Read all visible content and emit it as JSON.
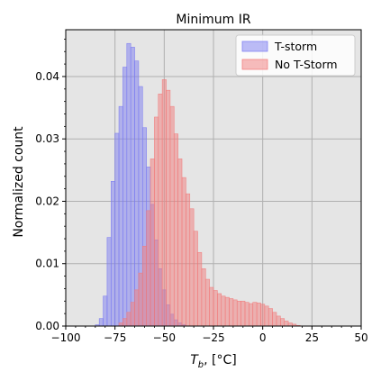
{
  "chart_data": {
    "type": "bar",
    "title": "Minimum IR",
    "xlabel_base": "T",
    "xlabel_sub": "b",
    "xlabel_unit": ", [°C]",
    "ylabel": "Normalized count",
    "xlim": [
      -100,
      50
    ],
    "ylim": [
      0,
      0.0475
    ],
    "xticks": [
      -100,
      -75,
      -50,
      -25,
      0,
      25,
      50
    ],
    "xtick_labels": [
      "−100",
      "−75",
      "−50",
      "−25",
      "0",
      "25",
      "50"
    ],
    "yticks": [
      0,
      0.01,
      0.02,
      0.03,
      0.04
    ],
    "ytick_labels": [
      "0.00",
      "0.01",
      "0.02",
      "0.03",
      "0.04"
    ],
    "grid": true,
    "legend_position": "top-right",
    "bin_width": 2,
    "series": [
      {
        "name": "T-storm",
        "color": "#7b7bf2",
        "alpha": 0.5,
        "bin_starts": [
          -85,
          -83,
          -81,
          -79,
          -77,
          -75,
          -73,
          -71,
          -69,
          -67,
          -65,
          -63,
          -61,
          -59,
          -57,
          -55,
          -53,
          -51,
          -49,
          -47,
          -45,
          -43,
          -41
        ],
        "values": [
          0.0002,
          0.0012,
          0.0048,
          0.0142,
          0.0232,
          0.0309,
          0.0352,
          0.0415,
          0.0453,
          0.0447,
          0.0425,
          0.0384,
          0.0318,
          0.0255,
          0.0195,
          0.0138,
          0.0092,
          0.0058,
          0.0034,
          0.0019,
          0.001,
          0.0005,
          0.0002
        ]
      },
      {
        "name": "No T-Storm",
        "color": "#f27b7b",
        "alpha": 0.5,
        "bin_starts": [
          -73,
          -71,
          -69,
          -67,
          -65,
          -63,
          -61,
          -59,
          -57,
          -55,
          -53,
          -51,
          -49,
          -47,
          -45,
          -43,
          -41,
          -39,
          -37,
          -35,
          -33,
          -31,
          -29,
          -27,
          -25,
          -23,
          -21,
          -19,
          -17,
          -15,
          -13,
          -11,
          -9,
          -7,
          -5,
          -3,
          -1,
          1,
          3,
          5,
          7,
          9,
          11,
          13,
          15,
          17
        ],
        "values": [
          0.0005,
          0.0012,
          0.0022,
          0.0038,
          0.0058,
          0.0085,
          0.0128,
          0.0185,
          0.0268,
          0.0335,
          0.0372,
          0.0395,
          0.0378,
          0.0352,
          0.0308,
          0.0268,
          0.0238,
          0.0212,
          0.0188,
          0.0152,
          0.0118,
          0.0092,
          0.0075,
          0.0062,
          0.0057,
          0.0052,
          0.0048,
          0.0046,
          0.0044,
          0.0042,
          0.004,
          0.004,
          0.0038,
          0.0036,
          0.0038,
          0.0037,
          0.0035,
          0.0032,
          0.0028,
          0.0022,
          0.0016,
          0.0012,
          0.0008,
          0.0005,
          0.0003,
          0.0001
        ]
      }
    ]
  }
}
